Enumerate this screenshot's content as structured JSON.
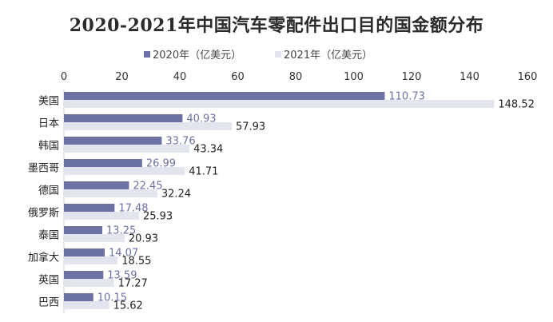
{
  "chart_data": {
    "type": "bar",
    "orientation": "horizontal",
    "title": "2020-2021年中国汽车零配件出口目的国金额分布",
    "categories": [
      "美国",
      "日本",
      "韩国",
      "墨西哥",
      "德国",
      "俄罗斯",
      "泰国",
      "加拿大",
      "英国",
      "巴西"
    ],
    "series": [
      {
        "name": "2020年（亿美元）",
        "color": "#6b72a3",
        "label_color": "#6b72a3",
        "values": [
          110.73,
          40.93,
          33.76,
          26.99,
          22.45,
          17.48,
          13.25,
          14.07,
          13.59,
          10.15
        ]
      },
      {
        "name": "2021年（亿美元）",
        "color": "#e3e5ee",
        "label_color": "#222222",
        "values": [
          148.52,
          57.93,
          43.34,
          41.71,
          32.24,
          25.93,
          20.93,
          18.55,
          17.27,
          15.62
        ]
      }
    ],
    "xlim": [
      0,
      160
    ],
    "xticks": [
      "0",
      "20",
      "40",
      "60",
      "80",
      "100",
      "120",
      "140",
      "160"
    ],
    "legend_position": "top",
    "xaxis_position": "top",
    "grid": false
  }
}
